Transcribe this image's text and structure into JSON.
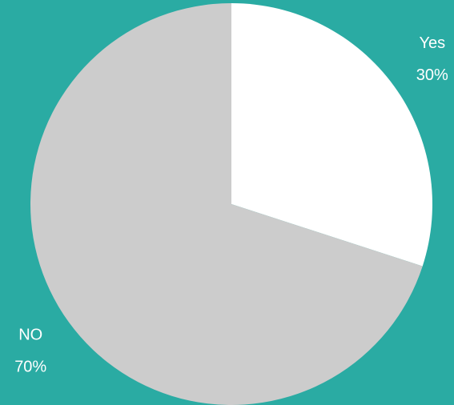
{
  "chart_data": {
    "type": "pie",
    "categories": [
      "Yes",
      "NO"
    ],
    "values": [
      30,
      70
    ],
    "value_labels": [
      "30%",
      "70%"
    ],
    "colors": [
      "#ffffff",
      "#cccccc"
    ]
  }
}
